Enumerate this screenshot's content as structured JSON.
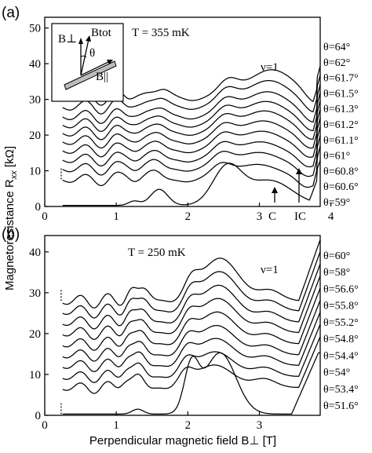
{
  "chart_data": [
    {
      "panel": "(a)",
      "type": "line",
      "annotation_T": "T = 355 mK",
      "annotation_nu": "ν=1",
      "xlim": [
        0,
        3.85
      ],
      "ylim": [
        0,
        53
      ],
      "x_ticks": [
        0,
        1,
        2,
        3,
        4
      ],
      "y_ticks": [
        0,
        10,
        20,
        30,
        40,
        50
      ],
      "inset_labels": {
        "b_perp": "B⊥",
        "b_tot": "Btot",
        "theta": "θ",
        "b_par": "B||"
      },
      "arrow_labels": [
        "C",
        "IC"
      ],
      "series": [
        {
          "name": "θ=64°",
          "offset": 30.5,
          "shift": 0.06,
          "amp": 1.0
        },
        {
          "name": "θ=62°",
          "offset": 28.0,
          "shift": 0.04,
          "amp": 0.97
        },
        {
          "name": "θ=61.7°",
          "offset": 25.3,
          "shift": 0.03,
          "amp": 0.95
        },
        {
          "name": "θ=61.5°",
          "offset": 23.0,
          "shift": 0.02,
          "amp": 0.93
        },
        {
          "name": "θ=61.3°",
          "offset": 20.7,
          "shift": 0.01,
          "amp": 0.92
        },
        {
          "name": "θ=61.2°",
          "offset": 18.3,
          "shift": 0.0,
          "amp": 0.9
        },
        {
          "name": "θ=61.1°",
          "offset": 15.8,
          "shift": -0.01,
          "amp": 0.88
        },
        {
          "name": "θ=61°",
          "offset": 13.2,
          "shift": -0.02,
          "amp": 0.86
        },
        {
          "name": "θ=60.8°",
          "offset": 10.6,
          "shift": -0.03,
          "amp": 0.84
        },
        {
          "name": "θ=60.6°",
          "offset": 7.6,
          "shift": -0.04,
          "amp": 0.82
        },
        {
          "name": "θ=59°",
          "offset": 0.3,
          "shift": -0.06,
          "amp": 0.8
        }
      ]
    },
    {
      "panel": "(b)",
      "type": "line",
      "annotation_T": "T = 250 mK",
      "annotation_nu": "ν=1",
      "xlim": [
        0,
        3.85
      ],
      "ylim": [
        0,
        44
      ],
      "x_ticks": [
        0,
        1,
        2,
        3
      ],
      "y_ticks": [
        0,
        10,
        20,
        30,
        40
      ],
      "xlabel": "Perpendicular magnetic field B⊥  [T]",
      "series": [
        {
          "name": "θ=60°",
          "offset": 28.0,
          "shift": 0.05,
          "amp": 1.0
        },
        {
          "name": "θ=58°",
          "offset": 25.5,
          "shift": 0.04,
          "amp": 0.97
        },
        {
          "name": "θ=56.6°",
          "offset": 22.8,
          "shift": 0.03,
          "amp": 0.95
        },
        {
          "name": "θ=55.8°",
          "offset": 20.2,
          "shift": 0.02,
          "amp": 0.93
        },
        {
          "name": "θ=55.2°",
          "offset": 17.5,
          "shift": 0.01,
          "amp": 0.91
        },
        {
          "name": "θ=54.8°",
          "offset": 14.8,
          "shift": 0.0,
          "amp": 0.89
        },
        {
          "name": "θ=54.4°",
          "offset": 12.2,
          "shift": -0.01,
          "amp": 0.87
        },
        {
          "name": "θ=54°",
          "offset": 9.5,
          "shift": -0.02,
          "amp": 0.85
        },
        {
          "name": "θ=53.4°",
          "offset": 6.8,
          "shift": -0.03,
          "amp": 0.83
        },
        {
          "name": "θ=51.6°",
          "offset": 0.3,
          "shift": -0.05,
          "amp": 0.8
        }
      ]
    }
  ],
  "ylabel_shared": "Magnetoresistance R",
  "ylabel_sub": "xx",
  "ylabel_unit": " [kΩ]"
}
